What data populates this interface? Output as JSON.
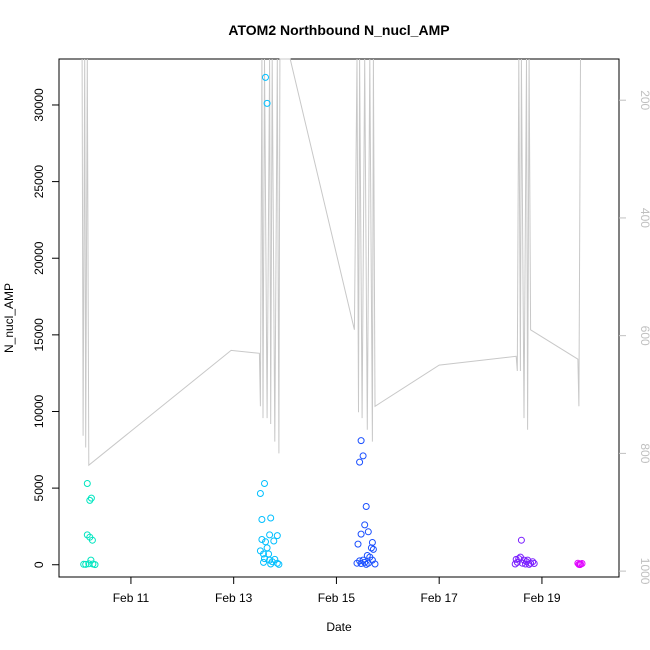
{
  "chart_data": {
    "type": "scatter",
    "title": "ATOM2 Northbound N_nucl_AMP",
    "xlabel": "Date",
    "ylabel": "N_nucl_AMP",
    "x_ticks": [
      {
        "day": 11,
        "label": "Feb 11"
      },
      {
        "day": 13,
        "label": "Feb 13"
      },
      {
        "day": 15,
        "label": "Feb 15"
      },
      {
        "day": 17,
        "label": "Feb 17"
      },
      {
        "day": 19,
        "label": "Feb 19"
      }
    ],
    "xlim": [
      9.6,
      20.5
    ],
    "y_ticks": [
      0,
      5000,
      10000,
      15000,
      20000,
      25000,
      30000
    ],
    "ylim": [
      -800,
      33000
    ],
    "right_axis": {
      "ticks": [
        200,
        400,
        600,
        800,
        1000
      ],
      "lim": [
        1010,
        130
      ],
      "color": "#c0c0c0"
    },
    "series": [
      {
        "color": "#00e5c0",
        "points": [
          [
            10.15,
            5300
          ],
          [
            10.2,
            4200
          ],
          [
            10.23,
            4350
          ],
          [
            10.15,
            1950
          ],
          [
            10.2,
            1800
          ],
          [
            10.25,
            1600
          ],
          [
            10.12,
            20
          ],
          [
            10.18,
            60
          ],
          [
            10.22,
            300
          ],
          [
            10.26,
            50
          ],
          [
            10.08,
            30
          ],
          [
            10.3,
            10
          ]
        ]
      },
      {
        "color": "#00bfff",
        "points": [
          [
            13.62,
            31800
          ],
          [
            13.65,
            30100
          ],
          [
            13.6,
            5300
          ],
          [
            13.52,
            4650
          ],
          [
            13.55,
            2950
          ],
          [
            13.72,
            3050
          ],
          [
            13.55,
            1650
          ],
          [
            13.62,
            1500
          ],
          [
            13.7,
            1950
          ],
          [
            13.78,
            1550
          ],
          [
            13.85,
            1900
          ],
          [
            13.65,
            1100
          ],
          [
            13.52,
            900
          ],
          [
            13.58,
            700
          ],
          [
            13.68,
            700
          ],
          [
            13.6,
            400
          ],
          [
            13.7,
            300
          ],
          [
            13.75,
            200
          ],
          [
            13.8,
            350
          ],
          [
            13.85,
            100
          ],
          [
            13.88,
            20
          ],
          [
            13.72,
            50
          ],
          [
            13.58,
            150
          ]
        ]
      },
      {
        "color": "#1a4fff",
        "points": [
          [
            15.48,
            8100
          ],
          [
            15.45,
            6700
          ],
          [
            15.52,
            7100
          ],
          [
            15.58,
            3800
          ],
          [
            15.55,
            2600
          ],
          [
            15.48,
            2000
          ],
          [
            15.42,
            1350
          ],
          [
            15.62,
            2150
          ],
          [
            15.7,
            1450
          ],
          [
            15.68,
            1100
          ],
          [
            15.72,
            1000
          ],
          [
            15.6,
            600
          ],
          [
            15.65,
            500
          ],
          [
            15.52,
            300
          ],
          [
            15.45,
            250
          ],
          [
            15.4,
            100
          ],
          [
            15.55,
            150
          ],
          [
            15.62,
            100
          ],
          [
            15.7,
            300
          ],
          [
            15.75,
            50
          ],
          [
            15.58,
            20
          ],
          [
            15.48,
            80
          ]
        ]
      },
      {
        "color": "#7a1fff",
        "points": [
          [
            18.5,
            350
          ],
          [
            18.55,
            400
          ],
          [
            18.6,
            1600
          ],
          [
            18.65,
            300
          ],
          [
            18.7,
            200
          ],
          [
            18.58,
            500
          ],
          [
            18.62,
            100
          ],
          [
            18.52,
            150
          ],
          [
            18.68,
            50
          ],
          [
            18.72,
            300
          ],
          [
            18.78,
            100
          ],
          [
            18.82,
            200
          ],
          [
            18.48,
            50
          ],
          [
            18.75,
            20
          ],
          [
            18.85,
            80
          ]
        ]
      },
      {
        "color": "#e000ff",
        "points": [
          [
            19.7,
            100
          ],
          [
            19.75,
            50
          ],
          [
            19.72,
            20
          ],
          [
            19.78,
            80
          ],
          [
            19.74,
            10
          ]
        ]
      }
    ],
    "overlay_line": {
      "color": "#c8c8c8",
      "axis": "right",
      "points": [
        [
          10.05,
          130
        ],
        [
          10.07,
          770
        ],
        [
          10.1,
          130
        ],
        [
          10.12,
          790
        ],
        [
          10.15,
          130
        ],
        [
          10.18,
          820
        ],
        [
          12.95,
          625
        ],
        [
          13.5,
          630
        ],
        [
          13.52,
          720
        ],
        [
          13.55,
          130
        ],
        [
          13.57,
          740
        ],
        [
          13.6,
          130
        ],
        [
          13.65,
          740
        ],
        [
          13.7,
          130
        ],
        [
          13.72,
          750
        ],
        [
          13.75,
          130
        ],
        [
          13.8,
          780
        ],
        [
          13.85,
          130
        ],
        [
          13.88,
          800
        ],
        [
          13.9,
          130
        ],
        [
          14.1,
          130
        ],
        [
          15.35,
          590
        ],
        [
          15.4,
          130
        ],
        [
          15.43,
          730
        ],
        [
          15.45,
          130
        ],
        [
          15.5,
          740
        ],
        [
          15.55,
          130
        ],
        [
          15.6,
          760
        ],
        [
          15.65,
          130
        ],
        [
          15.7,
          780
        ],
        [
          15.72,
          130
        ],
        [
          15.75,
          720
        ],
        [
          17.0,
          650
        ],
        [
          18.5,
          635
        ],
        [
          18.52,
          660
        ],
        [
          18.55,
          130
        ],
        [
          18.58,
          660
        ],
        [
          18.6,
          130
        ],
        [
          18.65,
          740
        ],
        [
          18.7,
          130
        ],
        [
          18.72,
          760
        ],
        [
          18.75,
          130
        ],
        [
          18.78,
          590
        ],
        [
          19.7,
          640
        ],
        [
          19.72,
          720
        ],
        [
          19.75,
          130
        ]
      ]
    }
  }
}
